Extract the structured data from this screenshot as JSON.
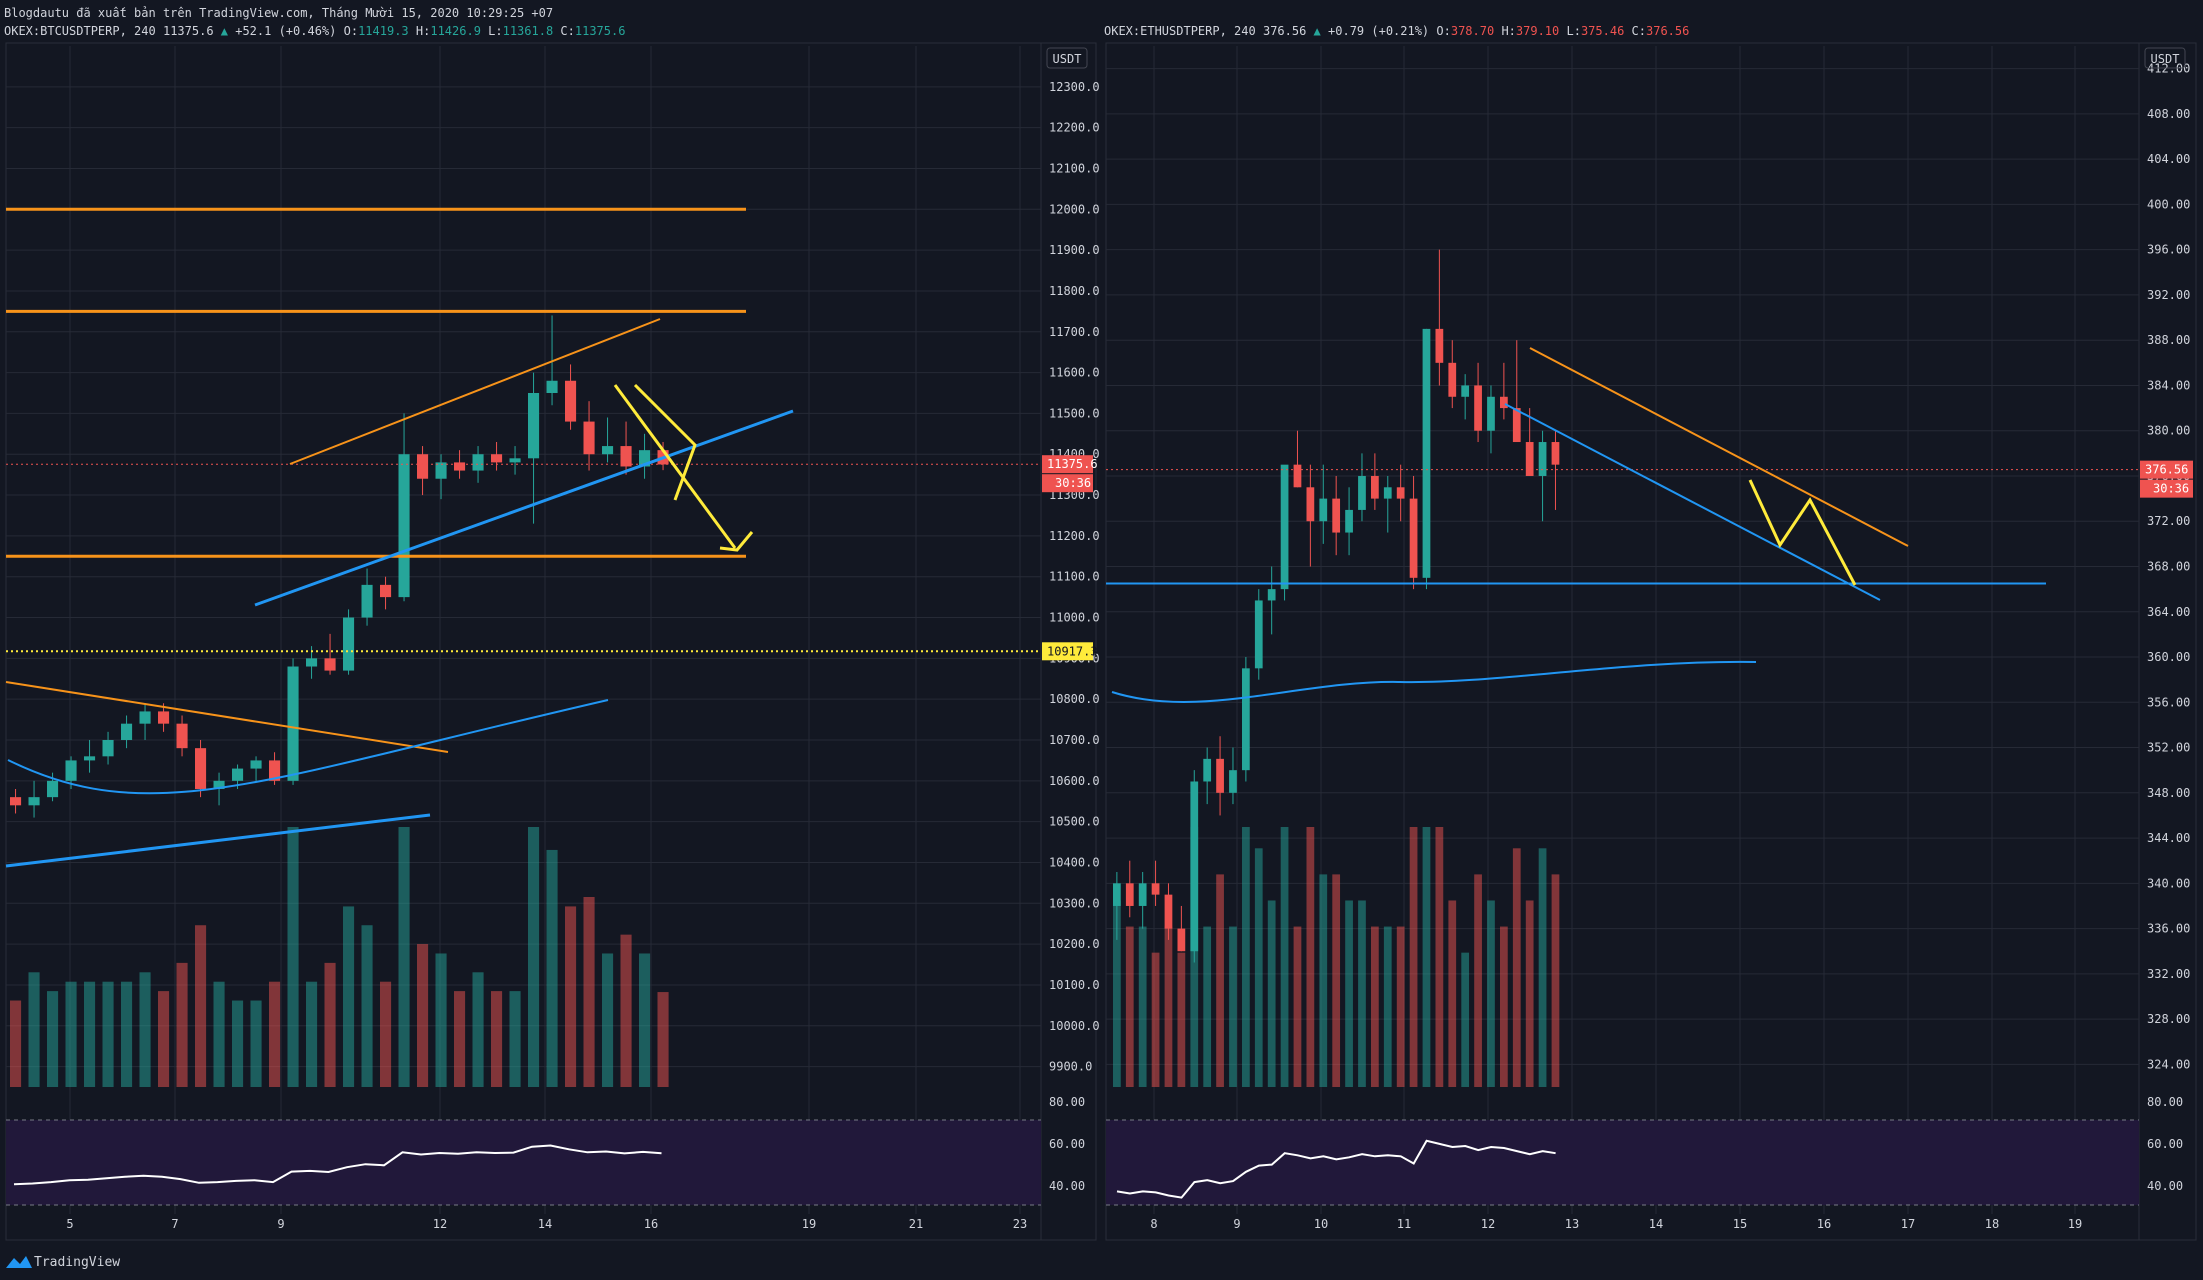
{
  "header": {
    "publish_line": "Blogdautu đã xuất bản trên TradingView.com, Tháng Mười 15, 2020 10:29:25 +07"
  },
  "footer": {
    "brand": "TradingView"
  },
  "colors": {
    "bg": "#131722",
    "up": "#26a69a",
    "down": "#ef5350",
    "orange": "#f7931a",
    "blue": "#2196f3",
    "yellow": "#ffeb3b",
    "rsi_band": "#21183a",
    "grid": "#262a36",
    "axis_text": "#d1d4dc"
  },
  "chart_data": [
    {
      "type": "candlestick",
      "symbol": "OKEX:BTCUSDTPERP",
      "interval": "240",
      "legend": {
        "last": "11375.6",
        "change": "+52.1 (+0.46%)",
        "o": "11419.3",
        "h": "11426.9",
        "l": "11361.8",
        "c": "11375.6"
      },
      "currency": "USDT",
      "ylim": [
        9850,
        12400
      ],
      "y_ticks": [
        "12300.0",
        "12200.0",
        "12100.0",
        "12000.0",
        "11900.0",
        "11800.0",
        "11700.0",
        "11600.0",
        "11500.0",
        "11400.0",
        "11300.0",
        "11200.0",
        "11100.0",
        "11000.0",
        "10900.0",
        "10800.0",
        "10700.0",
        "10600.0",
        "10500.0",
        "10400.0",
        "10300.0",
        "10200.0",
        "10100.0",
        "10000.0",
        "9900.0"
      ],
      "x_ticks": [
        "5",
        "7",
        "9",
        "12",
        "14",
        "16",
        "19",
        "21",
        "23"
      ],
      "price_badge": "11375.6",
      "countdown": "30:36",
      "level_badge": "10917.3",
      "candles_approx": [
        [
          10560,
          10580,
          10520,
          10540
        ],
        [
          10540,
          10600,
          10510,
          10560
        ],
        [
          10560,
          10620,
          10550,
          10600
        ],
        [
          10600,
          10660,
          10580,
          10650
        ],
        [
          10650,
          10700,
          10620,
          10660
        ],
        [
          10660,
          10720,
          10640,
          10700
        ],
        [
          10700,
          10760,
          10680,
          10740
        ],
        [
          10740,
          10790,
          10700,
          10770
        ],
        [
          10770,
          10790,
          10720,
          10740
        ],
        [
          10740,
          10760,
          10660,
          10680
        ],
        [
          10680,
          10700,
          10560,
          10580
        ],
        [
          10580,
          10620,
          10540,
          10600
        ],
        [
          10600,
          10640,
          10580,
          10630
        ],
        [
          10630,
          10660,
          10600,
          10650
        ],
        [
          10650,
          10670,
          10590,
          10600
        ],
        [
          10600,
          10900,
          10590,
          10880
        ],
        [
          10880,
          10930,
          10850,
          10900
        ],
        [
          10900,
          10960,
          10860,
          10870
        ],
        [
          10870,
          11020,
          10860,
          11000
        ],
        [
          11000,
          11120,
          10980,
          11080
        ],
        [
          11080,
          11100,
          11020,
          11050
        ],
        [
          11050,
          11500,
          11040,
          11400
        ],
        [
          11400,
          11420,
          11300,
          11340
        ],
        [
          11340,
          11400,
          11290,
          11380
        ],
        [
          11380,
          11410,
          11340,
          11360
        ],
        [
          11360,
          11420,
          11330,
          11400
        ],
        [
          11400,
          11430,
          11360,
          11380
        ],
        [
          11380,
          11420,
          11350,
          11390
        ],
        [
          11390,
          11600,
          11230,
          11550
        ],
        [
          11550,
          11740,
          11520,
          11580
        ],
        [
          11580,
          11620,
          11460,
          11480
        ],
        [
          11480,
          11530,
          11360,
          11400
        ],
        [
          11400,
          11490,
          11380,
          11420
        ],
        [
          11420,
          11480,
          11350,
          11370
        ],
        [
          11370,
          11450,
          11340,
          11410
        ],
        [
          11410,
          11430,
          11361,
          11375
        ]
      ],
      "volume_ylabel": "",
      "rsi": {
        "ticks": [
          "80.00",
          "60.00",
          "40.00"
        ],
        "upper": 70,
        "lower": 30
      },
      "annotations": {
        "resistance_levels": [
          12000,
          11750,
          11150
        ],
        "support_level": 10917.3
      }
    },
    {
      "type": "candlestick",
      "symbol": "OKEX:ETHUSDTPERP",
      "interval": "240",
      "legend": {
        "last": "376.56",
        "change": "+0.79 (+0.21%)",
        "o": "378.70",
        "h": "379.10",
        "l": "375.46",
        "c": "376.56"
      },
      "currency": "USDT",
      "ylim": [
        322,
        414
      ],
      "y_ticks": [
        "412.00",
        "408.00",
        "404.00",
        "400.00",
        "396.00",
        "392.00",
        "388.00",
        "384.00",
        "380.00",
        "376.00",
        "372.00",
        "368.00",
        "364.00",
        "360.00",
        "356.00",
        "352.00",
        "348.00",
        "344.00",
        "340.00",
        "336.00",
        "332.00",
        "328.00",
        "324.00"
      ],
      "x_ticks": [
        "8",
        "9",
        "10",
        "11",
        "12",
        "13",
        "14",
        "15",
        "16",
        "17",
        "18",
        "19"
      ],
      "price_badge": "376.56",
      "countdown": "30:36",
      "candles_approx": [
        [
          338,
          341,
          335,
          340
        ],
        [
          340,
          342,
          337,
          338
        ],
        [
          338,
          341,
          336,
          340
        ],
        [
          340,
          342,
          338,
          339
        ],
        [
          339,
          340,
          335,
          336
        ],
        [
          336,
          338,
          334,
          334
        ],
        [
          334,
          350,
          333,
          349
        ],
        [
          349,
          352,
          347,
          351
        ],
        [
          351,
          353,
          346,
          348
        ],
        [
          348,
          352,
          347,
          350
        ],
        [
          350,
          360,
          349,
          359
        ],
        [
          359,
          366,
          358,
          365
        ],
        [
          365,
          368,
          362,
          366
        ],
        [
          366,
          376,
          365,
          377
        ],
        [
          377,
          380,
          375,
          375
        ],
        [
          375,
          377,
          368,
          372
        ],
        [
          372,
          377,
          370,
          374
        ],
        [
          374,
          376,
          369,
          371
        ],
        [
          371,
          375,
          369,
          373
        ],
        [
          373,
          378,
          372,
          376
        ],
        [
          376,
          378,
          373,
          374
        ],
        [
          374,
          376,
          371,
          375
        ],
        [
          375,
          377,
          372,
          374
        ],
        [
          374,
          376,
          366,
          367
        ],
        [
          367,
          389,
          366,
          389
        ],
        [
          389,
          396,
          384,
          386
        ],
        [
          386,
          388,
          382,
          383
        ],
        [
          383,
          385,
          381,
          384
        ],
        [
          384,
          386,
          379,
          380
        ],
        [
          380,
          384,
          378,
          383
        ],
        [
          383,
          386,
          381,
          382
        ],
        [
          382,
          388,
          380,
          379
        ],
        [
          379,
          382,
          376,
          376
        ],
        [
          376,
          380,
          372,
          379
        ],
        [
          379,
          380,
          373,
          377
        ]
      ],
      "rsi": {
        "ticks": [
          "80.00",
          "60.00",
          "40.00"
        ],
        "upper": 70,
        "lower": 30
      },
      "annotations": {
        "support_level": 366.5
      }
    }
  ]
}
